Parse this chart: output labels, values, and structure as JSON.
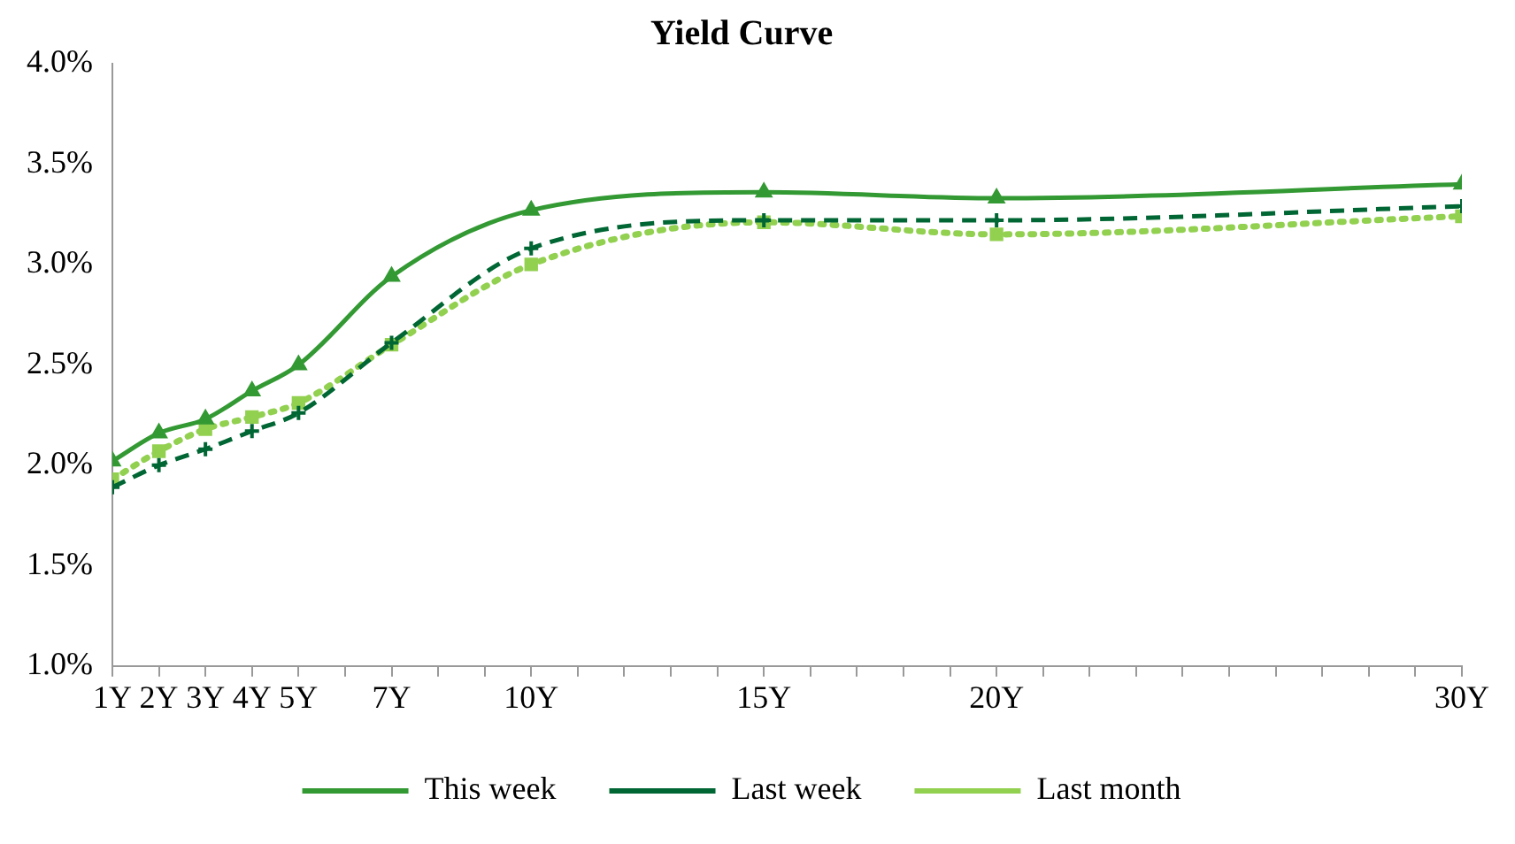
{
  "chart_data": {
    "type": "line",
    "title": "Yield Curve",
    "x": [
      1,
      2,
      3,
      4,
      5,
      7,
      10,
      15,
      20,
      30
    ],
    "xlim": [
      1,
      30
    ],
    "xticks": [
      {
        "value": 1,
        "label": "1Y"
      },
      {
        "value": 2,
        "label": "2Y"
      },
      {
        "value": 3,
        "label": "3Y"
      },
      {
        "value": 4,
        "label": "4Y"
      },
      {
        "value": 5,
        "label": "5Y"
      },
      {
        "value": 6,
        "label": null
      },
      {
        "value": 7,
        "label": "7Y"
      },
      {
        "value": 8,
        "label": null
      },
      {
        "value": 9,
        "label": null
      },
      {
        "value": 10,
        "label": "10Y"
      },
      {
        "value": 11,
        "label": null
      },
      {
        "value": 12,
        "label": null
      },
      {
        "value": 13,
        "label": null
      },
      {
        "value": 14,
        "label": null
      },
      {
        "value": 15,
        "label": "15Y"
      },
      {
        "value": 16,
        "label": null
      },
      {
        "value": 17,
        "label": null
      },
      {
        "value": 18,
        "label": null
      },
      {
        "value": 19,
        "label": null
      },
      {
        "value": 20,
        "label": "20Y"
      },
      {
        "value": 21,
        "label": null
      },
      {
        "value": 22,
        "label": null
      },
      {
        "value": 23,
        "label": null
      },
      {
        "value": 24,
        "label": null
      },
      {
        "value": 25,
        "label": null
      },
      {
        "value": 26,
        "label": null
      },
      {
        "value": 27,
        "label": null
      },
      {
        "value": 28,
        "label": null
      },
      {
        "value": 29,
        "label": null
      },
      {
        "value": 30,
        "label": "30Y"
      }
    ],
    "ylim": [
      1,
      4
    ],
    "yticks": [
      {
        "value": 1,
        "label": "1.0%"
      },
      {
        "value": 1.5,
        "label": "1.5%"
      },
      {
        "value": 2,
        "label": "2.0%"
      },
      {
        "value": 2.5,
        "label": "2.5%"
      },
      {
        "value": 3,
        "label": "3.0%"
      },
      {
        "value": 3.5,
        "label": "3.5%"
      },
      {
        "value": 4,
        "label": "4.0%"
      }
    ],
    "grid": false,
    "legend": "bottom",
    "series": [
      {
        "name": "This week",
        "color": "#339933",
        "marker": "triangle",
        "line_style": "solid",
        "values": [
          2.02,
          2.16,
          2.23,
          2.37,
          2.5,
          2.94,
          3.27,
          3.36,
          3.33,
          3.4
        ]
      },
      {
        "name": "Last week",
        "color": "#006633",
        "marker": "cross",
        "line_style": "dashed",
        "values": [
          1.89,
          2.0,
          2.08,
          2.17,
          2.26,
          2.61,
          3.08,
          3.22,
          3.22,
          3.29
        ]
      },
      {
        "name": "Last month",
        "color": "#92d050",
        "marker": "square",
        "line_style": "dotted",
        "values": [
          1.93,
          2.07,
          2.18,
          2.24,
          2.31,
          2.6,
          3.0,
          3.21,
          3.15,
          3.24
        ]
      }
    ]
  }
}
